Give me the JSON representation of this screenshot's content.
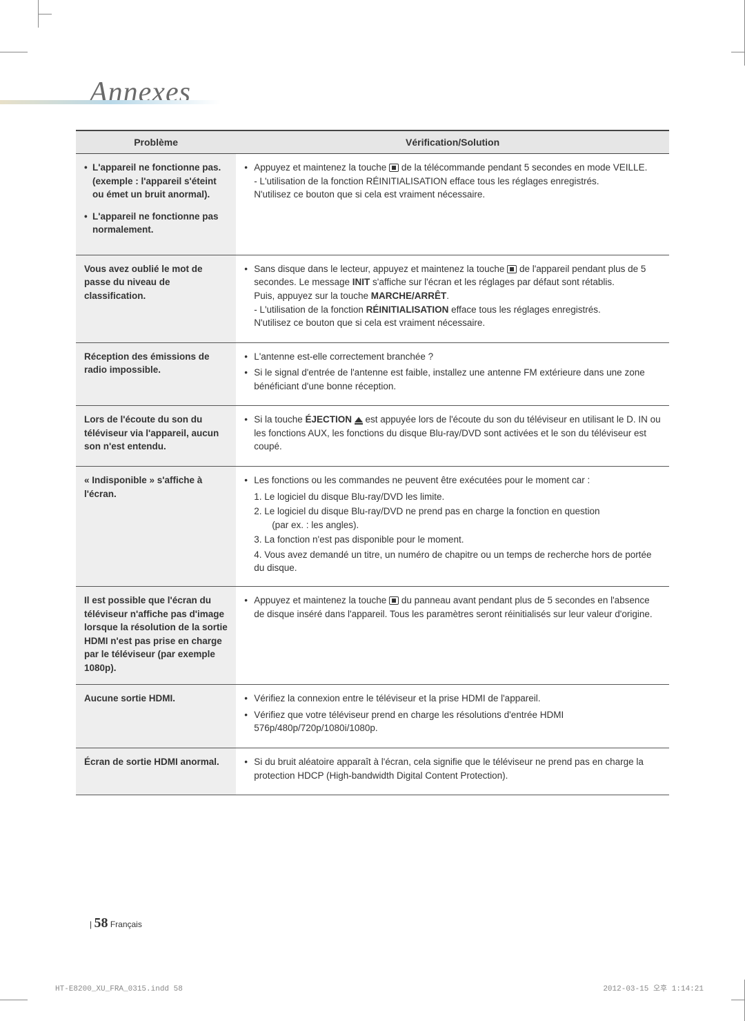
{
  "title": "Annexes",
  "table": {
    "headers": {
      "problem": "Problème",
      "solution": "Vérification/Solution"
    },
    "rows": [
      {
        "problem_items": [
          "L'appareil ne fonctionne pas.\n(exemple : l'appareil s'éteint ou émet un bruit anormal).",
          "L'appareil ne fonctionne pas normalement."
        ],
        "solution_bullets": [
          "Appuyez et maintenez la touche {STOP} de la télécommande pendant 5 secondes en mode VEILLE.\n- L'utilisation de la fonction RÉINITIALISATION efface tous les réglages enregistrés.\nN'utilisez ce bouton que si cela est vraiment nécessaire."
        ]
      },
      {
        "problem_text": "Vous avez oublié le mot de passe du niveau de classification.",
        "solution_bullets": [
          "Sans disque dans le lecteur, appuyez et maintenez la touche {STOP} de l'appareil pendant plus de 5 secondes. Le message {B:INIT} s'affiche sur l'écran et les réglages par défaut sont rétablis.\nPuis, appuyez sur la touche {B:MARCHE/ARRÊT}.\n- L'utilisation de la fonction {B:RÉINITIALISATION} efface tous les réglages enregistrés.\nN'utilisez ce bouton que si cela est vraiment nécessaire."
        ]
      },
      {
        "problem_text": "Réception des émissions de radio impossible.",
        "solution_bullets": [
          "L'antenne est-elle correctement branchée ?",
          "Si le signal d'entrée de l'antenne est faible, installez une antenne FM extérieure dans une zone bénéficiant d'une bonne réception."
        ]
      },
      {
        "problem_text": "Lors de l'écoute du son du téléviseur via l'appareil, aucun son n'est entendu.",
        "solution_bullets": [
          "Si la touche {B:ÉJECTION} {EJECT} est appuyée lors de l'écoute du son du téléviseur en utilisant le D. IN ou les fonctions AUX, les fonctions du disque Blu-ray/DVD sont activées et le son du téléviseur est coupé."
        ]
      },
      {
        "problem_text": "« Indisponible » s'affiche à l'écran.",
        "solution_bullets": [
          "Les fonctions ou les commandes ne peuvent être exécutées pour le moment car :"
        ],
        "solution_numbered": [
          "1. Le logiciel du disque Blu-ray/DVD les limite.",
          "2. Le logiciel du disque Blu-ray/DVD ne prend pas en charge la fonction en question (par ex. : les angles).",
          "3. La fonction n'est pas disponible pour le moment.",
          "4. Vous avez demandé un titre, un numéro de chapitre ou un temps de recherche hors de portée du disque."
        ]
      },
      {
        "problem_text": "Il est possible que l'écran du téléviseur n'affiche pas d'image lorsque la résolution de la sortie HDMI n'est pas prise en charge par le téléviseur (par exemple 1080p).",
        "solution_bullets": [
          "Appuyez et maintenez la touche {STOP} du panneau avant pendant plus de 5 secondes en l'absence de disque inséré dans l'appareil. Tous les paramètres seront réinitialisés sur leur valeur d'origine."
        ]
      },
      {
        "problem_text": "Aucune sortie HDMI.",
        "solution_bullets": [
          "Vérifiez la connexion entre le téléviseur et la prise HDMI de l'appareil.",
          "Vérifiez que votre téléviseur prend en charge les résolutions d'entrée HDMI 576p/480p/720p/1080i/1080p."
        ]
      },
      {
        "problem_text": "Écran de sortie HDMI anormal.",
        "solution_bullets": [
          "Si du bruit aléatoire apparaît à l'écran, cela signifie que le téléviseur ne prend pas en charge la protection HDCP (High-bandwidth Digital Content Protection)."
        ]
      }
    ]
  },
  "footer": {
    "divider": "|",
    "page_number": "58",
    "language": "Français"
  },
  "printmark": {
    "left": "HT-E8200_XU_FRA_0315.indd   58",
    "right": "2012-03-15   오후 1:14:21"
  }
}
